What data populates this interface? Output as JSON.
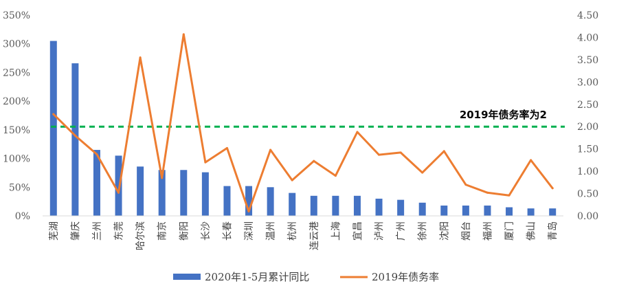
{
  "chart_data": {
    "type": "bar+line",
    "categories": [
      "芜湖",
      "肇庆",
      "兰州",
      "东莞",
      "哈尔滨",
      "南京",
      "衡阳",
      "长沙",
      "长春",
      "深圳",
      "温州",
      "杭州",
      "连云港",
      "上海",
      "宜昌",
      "泸州",
      "广州",
      "徐州",
      "沈阳",
      "烟台",
      "福州",
      "厦门",
      "佛山",
      "青岛"
    ],
    "series": [
      {
        "name": "2020年1-5月累计同比",
        "type": "bar",
        "axis": "left",
        "color": "#4472C4",
        "values": [
          3.05,
          2.66,
          1.15,
          1.05,
          0.86,
          0.8,
          0.8,
          0.76,
          0.52,
          0.52,
          0.5,
          0.4,
          0.35,
          0.35,
          0.35,
          0.3,
          0.28,
          0.23,
          0.18,
          0.18,
          0.18,
          0.15,
          0.13,
          0.13
        ]
      },
      {
        "name": "2019年债务率",
        "type": "line",
        "axis": "right",
        "color": "#ED7D31",
        "values": [
          2.28,
          1.8,
          1.38,
          0.52,
          3.55,
          0.85,
          4.07,
          1.2,
          1.52,
          0.1,
          1.48,
          0.8,
          1.23,
          0.9,
          1.88,
          1.37,
          1.42,
          0.97,
          1.45,
          0.7,
          0.52,
          0.46,
          1.25,
          0.62
        ]
      }
    ],
    "y_left": {
      "ylim": [
        0,
        3.5
      ],
      "ticks": [
        0,
        0.5,
        1.0,
        1.5,
        2.0,
        2.5,
        3.0,
        3.5
      ],
      "tick_labels": [
        "0%",
        "50%",
        "100%",
        "150%",
        "200%",
        "250%",
        "300%",
        "350%"
      ]
    },
    "y_right": {
      "ylim": [
        0,
        4.5
      ],
      "ticks": [
        0,
        0.5,
        1.0,
        1.5,
        2.0,
        2.5,
        3.0,
        3.5,
        4.0,
        4.5
      ],
      "tick_labels": [
        "0.00",
        "0.50",
        "1.00",
        "1.50",
        "2.00",
        "2.50",
        "3.00",
        "3.50",
        "4.00",
        "4.50"
      ]
    },
    "reference_line": {
      "axis": "right",
      "value": 2.0,
      "color": "#00B050",
      "style": "dashed",
      "label": "2019年债务率为2"
    },
    "grid": false,
    "legend": "bottom"
  }
}
